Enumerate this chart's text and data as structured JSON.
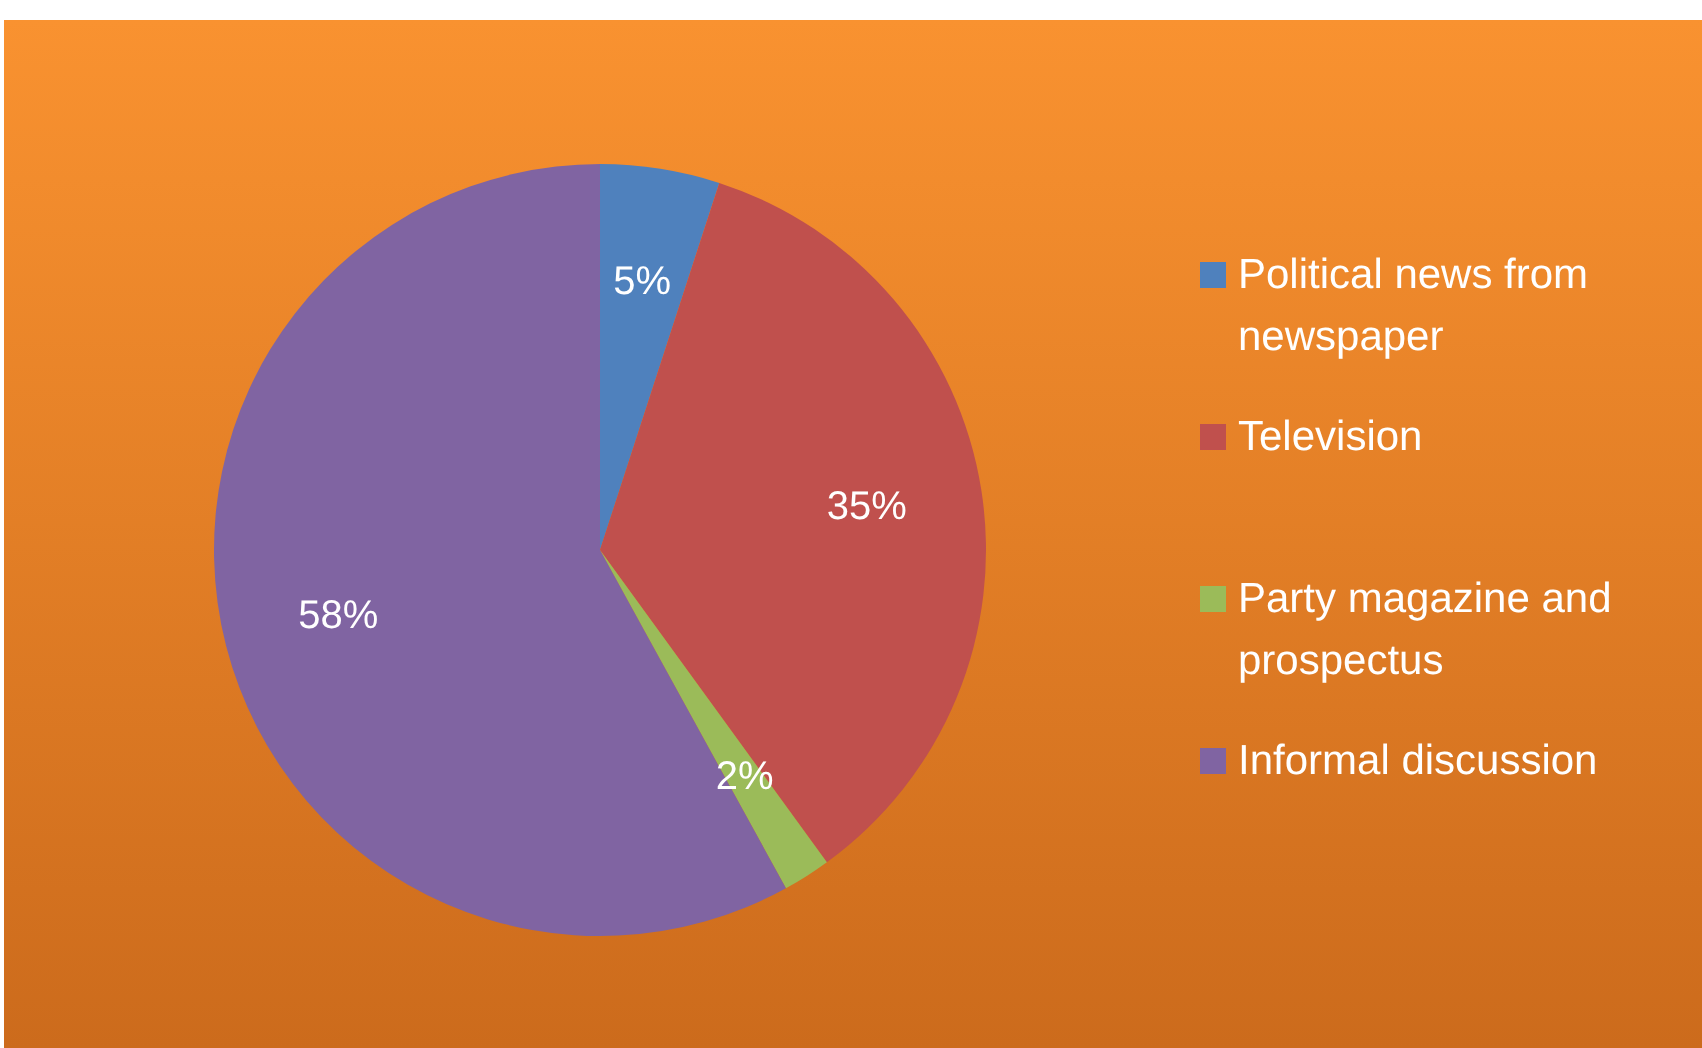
{
  "chart_data": {
    "type": "pie",
    "categories": [
      "Political news from newspaper",
      "Television",
      "Party magazine and prospectus",
      "Informal discussion"
    ],
    "values": [
      5,
      35,
      2,
      58
    ],
    "colors": [
      "#4f81bd",
      "#c0504d",
      "#9bbb59",
      "#8064a2"
    ],
    "value_labels": [
      "5%",
      "35%",
      "2%",
      "58%"
    ],
    "legend": "right"
  }
}
